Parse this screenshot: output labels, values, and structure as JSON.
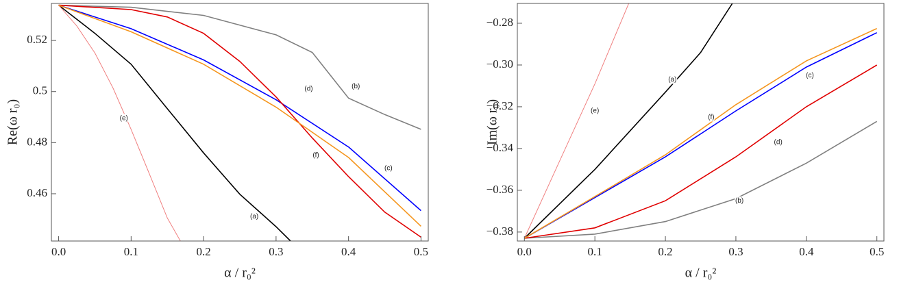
{
  "chart_data": [
    {
      "type": "line",
      "xlabel": "α / r₀²",
      "ylabel": "Re(ω r₀)",
      "xlim": [
        -0.01,
        0.51
      ],
      "ylim": [
        0.4415,
        0.5345
      ],
      "xticks": [
        {
          "value": 0,
          "label": "0.0"
        },
        0.1,
        0.2,
        0.3,
        0.4,
        0.5
      ],
      "yticks": [
        0.46,
        0.48,
        0.5,
        0.52
      ],
      "series": [
        {
          "name": "(a)",
          "color": "#000000",
          "x": [
            0,
            0.05,
            0.1,
            0.15,
            0.2,
            0.25,
            0.3,
            0.32
          ],
          "values": [
            0.5338,
            0.5228,
            0.5107,
            0.4933,
            0.476,
            0.4598,
            0.4471,
            0.4415
          ]
        },
        {
          "name": "(b)",
          "color": "#808080",
          "x": [
            0,
            0.1,
            0.2,
            0.3,
            0.35,
            0.4,
            0.45,
            0.5
          ],
          "values": [
            0.5338,
            0.533,
            0.5298,
            0.5222,
            0.5153,
            0.4974,
            0.491,
            0.4852
          ]
        },
        {
          "name": "(c)",
          "color": "#0000ff",
          "x": [
            0,
            0.1,
            0.2,
            0.3,
            0.4,
            0.5
          ],
          "values": [
            0.5338,
            0.5246,
            0.5124,
            0.4968,
            0.4783,
            0.4534
          ]
        },
        {
          "name": "(d)",
          "color": "#e00000",
          "x": [
            0,
            0.1,
            0.15,
            0.2,
            0.25,
            0.3,
            0.35,
            0.4,
            0.45,
            0.5
          ],
          "values": [
            0.5338,
            0.5321,
            0.5292,
            0.5228,
            0.5118,
            0.4979,
            0.4818,
            0.4667,
            0.4528,
            0.443
          ]
        },
        {
          "name": "(e)",
          "color": "#f08080",
          "x": [
            0,
            0.025,
            0.05,
            0.075,
            0.1,
            0.125,
            0.15,
            0.168
          ],
          "values": [
            0.5338,
            0.5257,
            0.5151,
            0.5014,
            0.4852,
            0.4679,
            0.4505,
            0.4415
          ]
        },
        {
          "name": "(f)",
          "color": "#f5961e",
          "x": [
            0,
            0.1,
            0.2,
            0.3,
            0.4,
            0.5
          ],
          "values": [
            0.5338,
            0.5234,
            0.5107,
            0.4939,
            0.4742,
            0.4473
          ]
        }
      ]
    },
    {
      "type": "line",
      "xlabel": "α / r₀²",
      "ylabel": "Im(ω r₀)",
      "xlim": [
        -0.01,
        0.51
      ],
      "ylim": [
        -0.3843,
        -0.2705
      ],
      "xticks": [
        {
          "value": 0,
          "label": "0.0"
        },
        0.1,
        0.2,
        0.3,
        0.4,
        0.5
      ],
      "yticks": [
        {
          "value": -0.38,
          "label": "−0.38"
        },
        {
          "value": -0.36,
          "label": "−0.36"
        },
        {
          "value": -0.34,
          "label": "−0.34"
        },
        {
          "value": -0.32,
          "label": "−0.32"
        },
        {
          "value": -0.3,
          "label": "−0.30"
        },
        {
          "value": -0.28,
          "label": "−0.28"
        }
      ],
      "series": [
        {
          "name": "(a)",
          "color": "#000000",
          "x": [
            0,
            0.1,
            0.2,
            0.25,
            0.295
          ],
          "values": [
            -0.383,
            -0.35,
            -0.313,
            -0.294,
            -0.2705
          ]
        },
        {
          "name": "(b)",
          "color": "#808080",
          "x": [
            0,
            0.1,
            0.2,
            0.3,
            0.4,
            0.5
          ],
          "values": [
            -0.383,
            -0.381,
            -0.375,
            -0.364,
            -0.347,
            -0.327
          ]
        },
        {
          "name": "(c)",
          "color": "#0000ff",
          "x": [
            0,
            0.1,
            0.2,
            0.3,
            0.4,
            0.5
          ],
          "values": [
            -0.383,
            -0.3635,
            -0.344,
            -0.322,
            -0.301,
            -0.2845
          ]
        },
        {
          "name": "(d)",
          "color": "#e00000",
          "x": [
            0,
            0.1,
            0.2,
            0.3,
            0.4,
            0.5
          ],
          "values": [
            -0.383,
            -0.378,
            -0.365,
            -0.344,
            -0.32,
            -0.3
          ]
        },
        {
          "name": "(e)",
          "color": "#f08080",
          "x": [
            0,
            0.05,
            0.1,
            0.148
          ],
          "values": [
            -0.383,
            -0.346,
            -0.309,
            -0.2705
          ]
        },
        {
          "name": "(f)",
          "color": "#f5961e",
          "x": [
            0,
            0.1,
            0.2,
            0.3,
            0.4,
            0.5
          ],
          "values": [
            -0.383,
            -0.363,
            -0.343,
            -0.319,
            -0.298,
            -0.2825
          ]
        }
      ]
    }
  ]
}
